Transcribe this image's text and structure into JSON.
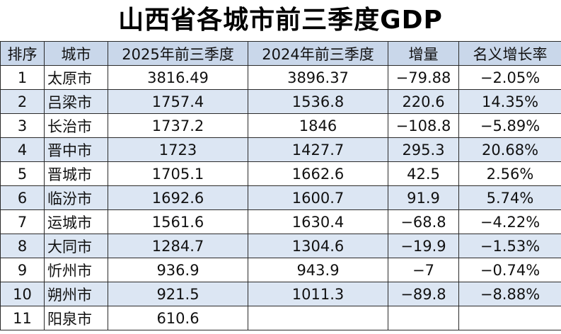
{
  "header": {
    "title": "山西省各城市前三季度GDP"
  },
  "table": {
    "columns": [
      "排序",
      "城市",
      "2025年前三季度",
      "2024年前三季度",
      "增量",
      "名义增长率"
    ],
    "rows": [
      [
        "1",
        "太原市",
        "3816.49",
        "3896.37",
        "−79.88",
        "−2.05%"
      ],
      [
        "2",
        "吕梁市",
        "1757.4",
        "1536.8",
        "220.6",
        "14.35%"
      ],
      [
        "3",
        "长治市",
        "1737.2",
        "1846",
        "−108.8",
        "−5.89%"
      ],
      [
        "4",
        "晋中市",
        "1723",
        "1427.7",
        "295.3",
        "20.68%"
      ],
      [
        "5",
        "晋城市",
        "1705.1",
        "1662.6",
        "42.5",
        "2.56%"
      ],
      [
        "6",
        "临汾市",
        "1692.6",
        "1600.7",
        "91.9",
        "5.74%"
      ],
      [
        "7",
        "运城市",
        "1561.6",
        "1630.4",
        "−68.8",
        "−4.22%"
      ],
      [
        "8",
        "大同市",
        "1284.7",
        "1304.6",
        "−19.9",
        "−1.53%"
      ],
      [
        "9",
        "忻州市",
        "936.9",
        "943.9",
        "−7",
        "−0.74%"
      ],
      [
        "10",
        "朔州市",
        "921.5",
        "1011.3",
        "−89.8",
        "−8.88%"
      ],
      [
        "11",
        "阳泉市",
        "610.6"
      ]
    ]
  }
}
